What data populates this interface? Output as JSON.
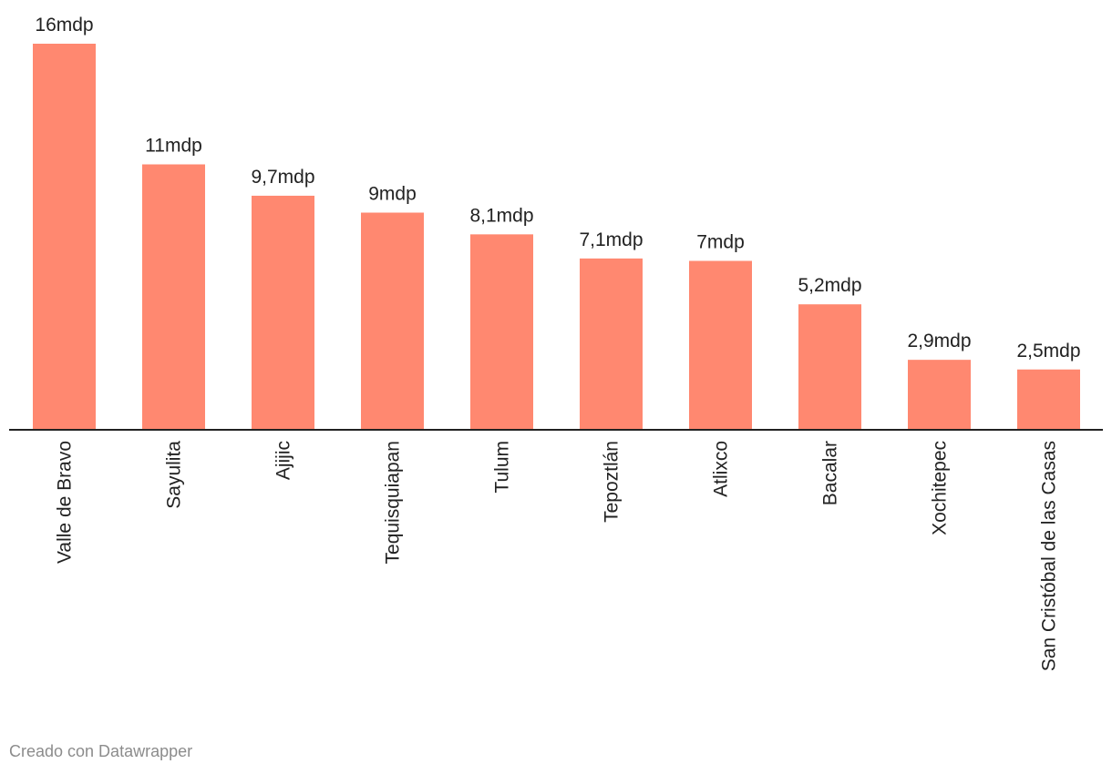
{
  "chart_data": {
    "type": "bar",
    "categories": [
      "Valle de Bravo",
      "Sayulita",
      "Ajijic",
      "Tequisquiapan",
      "Tulum",
      "Tepoztlán",
      "Atlixco",
      "Bacalar",
      "Xochitepec",
      "San Cristóbal de las Casas"
    ],
    "values": [
      16,
      11,
      9.7,
      9,
      8.1,
      7.1,
      7,
      5.2,
      2.9,
      2.5
    ],
    "value_labels": [
      "16mdp",
      "11mdp",
      "9,7mdp",
      "9mdp",
      "8,1mdp",
      "7,1mdp",
      "7mdp",
      "5,2mdp",
      "2,9mdp",
      "2,5mdp"
    ],
    "title": "",
    "xlabel": "",
    "ylabel": "",
    "ylim": [
      0,
      16
    ],
    "grid": false,
    "bar_color": "#ff8870",
    "baseline_color": "#222222"
  },
  "credit": "Creado con Datawrapper"
}
